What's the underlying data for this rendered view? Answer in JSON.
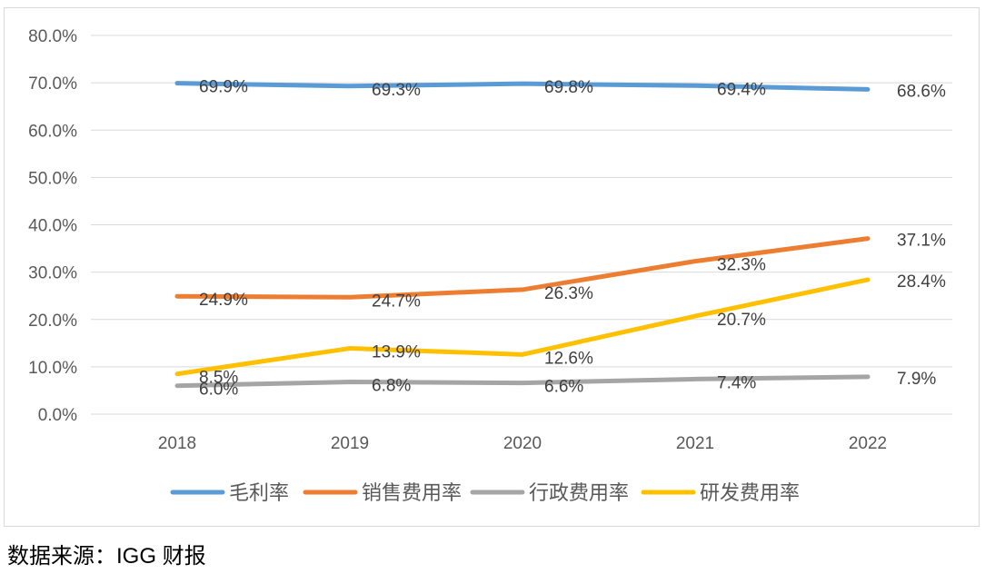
{
  "chart_data": {
    "type": "line",
    "categories": [
      "2018",
      "2019",
      "2020",
      "2021",
      "2022"
    ],
    "ylim": [
      0,
      80
    ],
    "yticks": [
      "0.0%",
      "10.0%",
      "20.0%",
      "30.0%",
      "40.0%",
      "50.0%",
      "60.0%",
      "70.0%",
      "80.0%"
    ],
    "grid": true,
    "legend_position": "bottom",
    "series": [
      {
        "name": "毛利率",
        "color": "#5B9BD5",
        "values": [
          69.9,
          69.3,
          69.8,
          69.4,
          68.6
        ],
        "labels": [
          "69.9%",
          "69.3%",
          "69.8%",
          "69.4%",
          "68.6%"
        ]
      },
      {
        "name": "销售费用率",
        "color": "#ED7D31",
        "values": [
          24.9,
          24.7,
          26.3,
          32.3,
          37.1
        ],
        "labels": [
          "24.9%",
          "24.7%",
          "26.3%",
          "32.3%",
          "37.1%"
        ]
      },
      {
        "name": "行政费用率",
        "color": "#A5A5A5",
        "values": [
          6.0,
          6.8,
          6.6,
          7.4,
          7.9
        ],
        "labels": [
          "6.0%",
          "6.8%",
          "6.6%",
          "7.4%",
          "7.9%"
        ]
      },
      {
        "name": "研发费用率",
        "color": "#FFC000",
        "values": [
          8.5,
          13.9,
          12.6,
          20.7,
          28.4
        ],
        "labels": [
          "8.5%",
          "13.9%",
          "12.6%",
          "20.7%",
          "28.4%"
        ]
      }
    ]
  },
  "source_note": "数据来源：IGG 财报"
}
